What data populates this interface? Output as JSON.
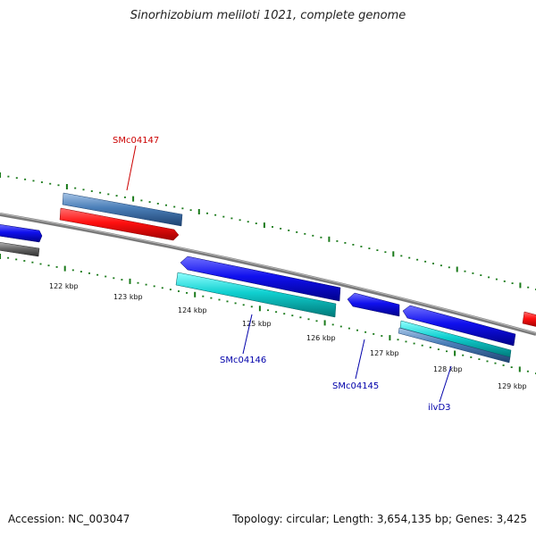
{
  "title": "Sinorhizobium meliloti 1021, complete genome",
  "footer": {
    "accession": "Accession: NC_003047",
    "summary": "Topology: circular; Length: 3,654,135 bp; Genes: 3,425"
  },
  "tick_labels": [
    "122 kbp",
    "123 kbp",
    "124 kbp",
    "125 kbp",
    "126 kbp",
    "127 kbp",
    "128 kbp",
    "129 kbp"
  ],
  "gene_labels": [
    {
      "text": "SMc04147",
      "color": "#cc0000"
    },
    {
      "text": "SMc04146",
      "color": "#0000aa"
    },
    {
      "text": "SMc04145",
      "color": "#0000aa"
    },
    {
      "text": "ilvD3",
      "color": "#0000aa"
    }
  ],
  "colors": {
    "backbone": "#7a7a7a",
    "tick": "#1a7a1a",
    "red_feature": "#ee1111",
    "blue_feature": "#1a1aee",
    "steel_feature": "#4a7eb8",
    "cyan_feature": "#10cccc",
    "gray_feature": "#6a6a6a"
  }
}
